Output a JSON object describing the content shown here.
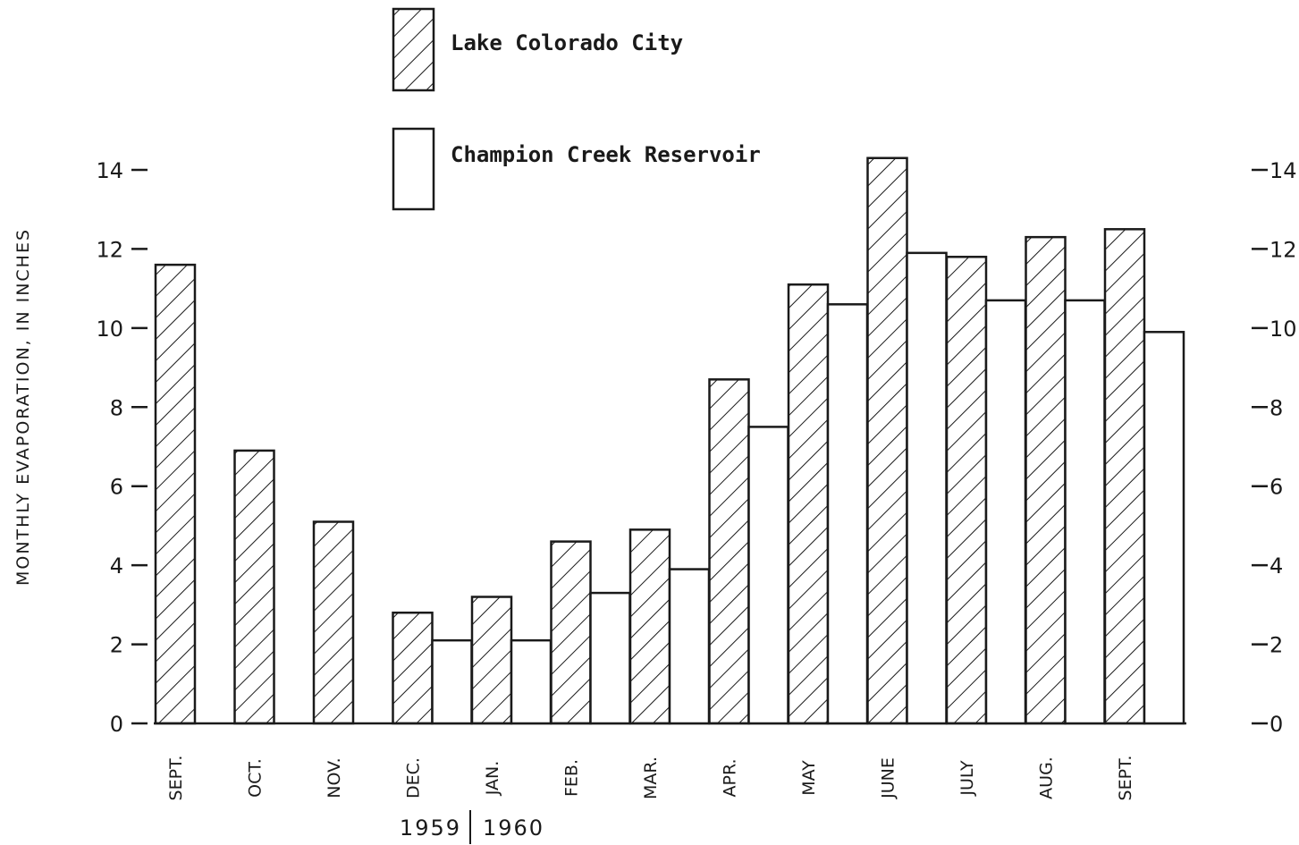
{
  "chart_data": {
    "type": "bar",
    "title": "",
    "xlabel": "",
    "ylabel": "MONTHLY EVAPORATION, IN INCHES",
    "ylim": [
      0,
      14
    ],
    "yticks": [
      0,
      2,
      4,
      6,
      8,
      10,
      12,
      14
    ],
    "categories": [
      "SEPT.",
      "OCT.",
      "NOV.",
      "DEC.",
      "JAN.",
      "FEB.",
      "MAR.",
      "APR.",
      "MAY",
      "JUNE",
      "JULY",
      "AUG.",
      "SEPT."
    ],
    "year_labels": [
      "1959",
      "1960"
    ],
    "legend_position": "top-center",
    "right_axis": true,
    "grid": false,
    "series": [
      {
        "name": "Lake Colorado City",
        "pattern": "diagonal-hatch",
        "values": [
          11.6,
          6.9,
          5.1,
          2.8,
          3.2,
          4.6,
          4.9,
          8.7,
          11.1,
          14.3,
          11.8,
          12.3,
          12.5
        ]
      },
      {
        "name": "Champion Creek Reservoir",
        "pattern": "none",
        "values": [
          null,
          null,
          null,
          2.1,
          2.1,
          3.3,
          3.9,
          7.5,
          10.6,
          11.9,
          10.7,
          10.7,
          9.9
        ]
      }
    ]
  }
}
